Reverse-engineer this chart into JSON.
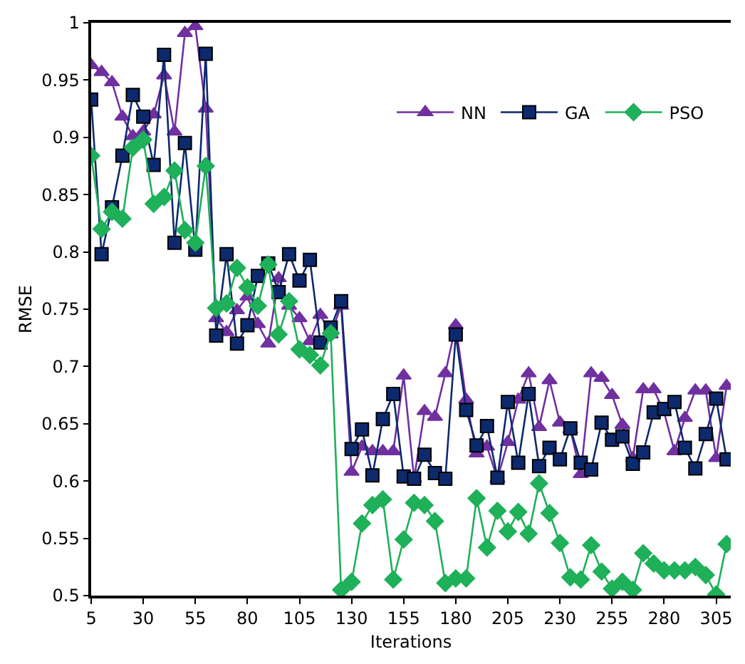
{
  "chart_data": {
    "type": "line",
    "xlabel": "Iterations",
    "ylabel": "RMSE",
    "x": [
      5,
      10,
      15,
      20,
      25,
      30,
      35,
      40,
      45,
      50,
      55,
      60,
      65,
      70,
      75,
      80,
      85,
      90,
      95,
      100,
      105,
      110,
      115,
      120,
      125,
      130,
      135,
      140,
      145,
      150,
      155,
      160,
      165,
      170,
      175,
      180,
      185,
      190,
      195,
      200,
      205,
      210,
      215,
      220,
      225,
      230,
      235,
      240,
      245,
      250,
      255,
      260,
      265,
      270,
      275,
      280,
      285,
      290,
      295,
      300,
      305,
      310
    ],
    "xlim": [
      5,
      312
    ],
    "xticks": [
      5,
      30,
      55,
      80,
      105,
      130,
      155,
      180,
      205,
      230,
      255,
      280,
      305
    ],
    "ylim": [
      0.5,
      1
    ],
    "yticks": [
      0.5,
      0.55,
      0.6,
      0.65,
      0.7,
      0.75,
      0.8,
      0.85,
      0.9,
      0.95,
      1
    ],
    "grid": false,
    "legend": "top right",
    "series": [
      {
        "name": "NN",
        "color": "#7030a0",
        "marker": "triangle",
        "values": [
          0.963,
          0.957,
          0.948,
          0.918,
          0.901,
          0.905,
          0.92,
          0.954,
          0.905,
          0.991,
          0.997,
          0.925,
          0.742,
          0.73,
          0.749,
          0.761,
          0.737,
          0.72,
          0.777,
          0.753,
          0.742,
          0.722,
          0.745,
          0.728,
          0.753,
          0.608,
          0.63,
          0.626,
          0.626,
          0.626,
          0.692,
          0.602,
          0.661,
          0.656,
          0.694,
          0.736,
          0.671,
          0.624,
          0.63,
          0.602,
          0.634,
          0.671,
          0.694,
          0.647,
          0.688,
          0.651,
          0.645,
          0.606,
          0.694,
          0.69,
          0.675,
          0.649,
          0.62,
          0.68,
          0.68,
          0.66,
          0.626,
          0.655,
          0.679,
          0.679,
          0.62,
          0.683
        ]
      },
      {
        "name": "GA",
        "color": "#0d2a6e",
        "marker": "square",
        "values": [
          0.933,
          0.798,
          0.839,
          0.884,
          0.937,
          0.918,
          0.876,
          0.972,
          0.808,
          0.895,
          0.802,
          0.973,
          0.727,
          0.798,
          0.72,
          0.736,
          0.779,
          0.79,
          0.765,
          0.798,
          0.775,
          0.793,
          0.721,
          0.734,
          0.757,
          0.628,
          0.645,
          0.605,
          0.654,
          0.676,
          0.604,
          0.602,
          0.623,
          0.607,
          0.602,
          0.728,
          0.662,
          0.631,
          0.648,
          0.603,
          0.669,
          0.616,
          0.676,
          0.613,
          0.629,
          0.619,
          0.646,
          0.616,
          0.61,
          0.651,
          0.636,
          0.639,
          0.615,
          0.625,
          0.66,
          0.663,
          0.669,
          0.629,
          0.611,
          0.641,
          0.672,
          0.619
        ]
      },
      {
        "name": "PSO",
        "color": "#1fb05a",
        "marker": "diamond",
        "values": [
          0.884,
          0.82,
          0.835,
          0.829,
          0.891,
          0.898,
          0.842,
          0.848,
          0.871,
          0.819,
          0.808,
          0.875,
          0.751,
          0.755,
          0.786,
          0.769,
          0.753,
          0.789,
          0.728,
          0.757,
          0.715,
          0.71,
          0.701,
          0.729,
          0.505,
          0.512,
          0.563,
          0.579,
          0.584,
          0.514,
          0.549,
          0.581,
          0.579,
          0.565,
          0.511,
          0.515,
          0.515,
          0.585,
          0.542,
          0.574,
          0.556,
          0.573,
          0.554,
          0.598,
          0.572,
          0.546,
          0.516,
          0.514,
          0.544,
          0.521,
          0.506,
          0.512,
          0.505,
          0.537,
          0.528,
          0.522,
          0.522,
          0.522,
          0.525,
          0.518,
          0.501,
          0.545
        ]
      }
    ]
  }
}
